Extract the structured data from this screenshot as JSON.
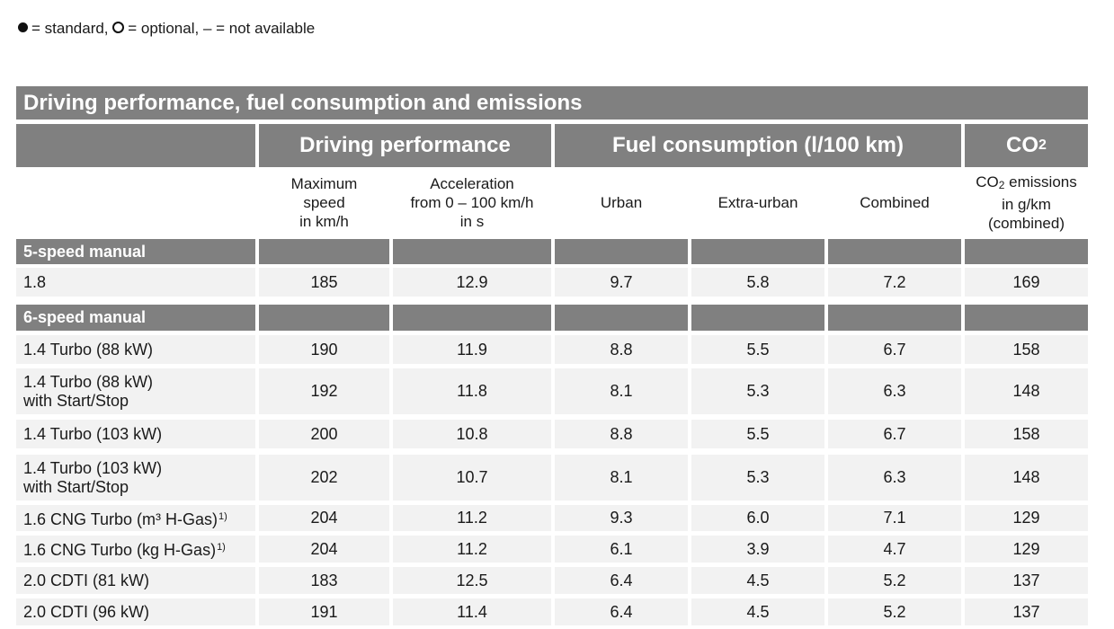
{
  "legend": {
    "standard": "= standard,",
    "optional": "= optional,",
    "not_available": "– = not available"
  },
  "table": {
    "title": "Driving performance, fuel consumption and emissions",
    "groups": {
      "driving": "Driving performance",
      "fuel": "Fuel consumption (l/100 km)",
      "co2_main": "CO",
      "co2_sub": "2"
    },
    "columns": {
      "max_speed": [
        "Maximum",
        "speed",
        "in km/h"
      ],
      "accel": [
        "Acceleration",
        "from 0 – 100 km/h",
        "in s"
      ],
      "urban": "Urban",
      "extra_urban": "Extra-urban",
      "combined": "Combined",
      "co2_l1a": "CO",
      "co2_l1b": "2",
      "co2_l1c": " emissions",
      "co2_l2": "in g/km",
      "co2_l3": "(combined)"
    },
    "sections": [
      {
        "label": "5-speed manual",
        "rows": [
          {
            "engine": "1.8",
            "engine2": "",
            "sup": "",
            "speed": "185",
            "accel": "12.9",
            "urban": "9.7",
            "extra": "5.8",
            "combined": "7.2",
            "co2": "169"
          }
        ]
      },
      {
        "label": "6-speed manual",
        "rows": [
          {
            "engine": "1.4 Turbo (88 kW)",
            "engine2": "",
            "sup": "",
            "speed": "190",
            "accel": "11.9",
            "urban": "8.8",
            "extra": "5.5",
            "combined": "6.7",
            "co2": "158"
          },
          {
            "engine": "1.4 Turbo (88 kW)",
            "engine2": "with Start/Stop",
            "sup": "",
            "speed": "192",
            "accel": "11.8",
            "urban": "8.1",
            "extra": "5.3",
            "combined": "6.3",
            "co2": "148"
          },
          {
            "engine": "1.4 Turbo (103 kW)",
            "engine2": "",
            "sup": "",
            "speed": "200",
            "accel": "10.8",
            "urban": "8.8",
            "extra": "5.5",
            "combined": "6.7",
            "co2": "158"
          },
          {
            "engine": "1.4 Turbo (103 kW)",
            "engine2": "with Start/Stop",
            "sup": "",
            "speed": "202",
            "accel": "10.7",
            "urban": "8.1",
            "extra": "5.3",
            "combined": "6.3",
            "co2": "148"
          },
          {
            "engine": "1.6 CNG Turbo (m³ H-Gas)",
            "engine2": "",
            "sup": "1)",
            "speed": "204",
            "accel": "11.2",
            "urban": "9.3",
            "extra": "6.0",
            "combined": "7.1",
            "co2": "129"
          },
          {
            "engine": "1.6 CNG Turbo (kg H-Gas)",
            "engine2": "",
            "sup": "1)",
            "speed": "204",
            "accel": "11.2",
            "urban": "6.1",
            "extra": "3.9",
            "combined": "4.7",
            "co2": "129"
          },
          {
            "engine": "2.0 CDTI (81 kW)",
            "engine2": "",
            "sup": "",
            "speed": "183",
            "accel": "12.5",
            "urban": "6.4",
            "extra": "4.5",
            "combined": "5.2",
            "co2": "137"
          },
          {
            "engine": "2.0 CDTI (96 kW)",
            "engine2": "",
            "sup": "",
            "speed": "191",
            "accel": "11.4",
            "urban": "6.4",
            "extra": "4.5",
            "combined": "5.2",
            "co2": "137"
          }
        ]
      }
    ]
  }
}
